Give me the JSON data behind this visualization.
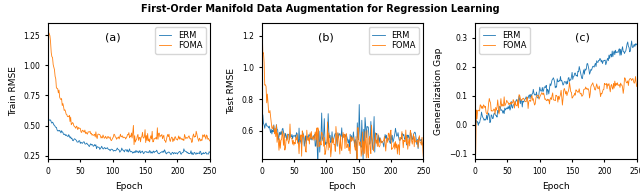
{
  "title": "First-Order Manifold Data Augmentation for Regression Learning",
  "title_fontsize": 7,
  "xlabel": "Epoch",
  "subplot_labels": [
    "(a)",
    "(b)",
    "(c)"
  ],
  "ylabel_a": "Train RMSE",
  "ylabel_b": "Test RMSE",
  "ylabel_c": "Generalization Gap",
  "ylim_a": [
    0.22,
    1.35
  ],
  "ylim_b": [
    0.42,
    1.28
  ],
  "ylim_c": [
    -0.12,
    0.35
  ],
  "yticks_a": [
    0.25,
    0.5,
    0.75,
    1.0,
    1.25
  ],
  "yticks_b": [
    0.6,
    0.8,
    1.0,
    1.2
  ],
  "yticks_c": [
    -0.1,
    0.0,
    0.1,
    0.2,
    0.3
  ],
  "xlim": [
    0,
    250
  ],
  "xticks": [
    0,
    50,
    100,
    150,
    200,
    250
  ],
  "color_erm": "#1f77b4",
  "color_foma": "#ff7f0e",
  "legend_fontsize": 6,
  "n_epochs": 250,
  "seed": 42,
  "bg_color": "#ffffff"
}
